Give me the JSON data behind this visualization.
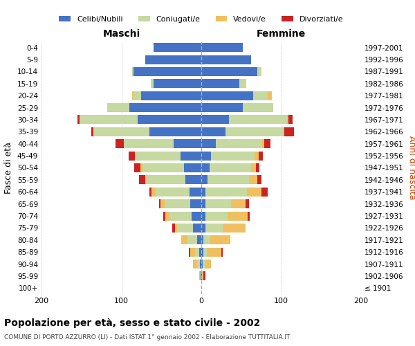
{
  "age_groups": [
    "100+",
    "95-99",
    "90-94",
    "85-89",
    "80-84",
    "75-79",
    "70-74",
    "65-69",
    "60-64",
    "55-59",
    "50-54",
    "45-49",
    "40-44",
    "35-39",
    "30-34",
    "25-29",
    "20-24",
    "15-19",
    "10-14",
    "5-9",
    "0-4"
  ],
  "birth_years": [
    "≤ 1901",
    "1902-1906",
    "1907-1911",
    "1912-1916",
    "1917-1921",
    "1922-1926",
    "1927-1931",
    "1932-1936",
    "1937-1941",
    "1942-1946",
    "1947-1951",
    "1952-1956",
    "1957-1961",
    "1962-1966",
    "1967-1971",
    "1972-1976",
    "1977-1981",
    "1982-1986",
    "1987-1991",
    "1992-1996",
    "1997-2001"
  ],
  "colors": {
    "celibi": "#4472c4",
    "coniugati": "#c5d9a0",
    "vedovi": "#f0c060",
    "divorziati": "#cc2222"
  },
  "males": {
    "celibi": [
      0,
      1,
      2,
      3,
      5,
      10,
      12,
      14,
      15,
      20,
      22,
      26,
      35,
      65,
      80,
      90,
      75,
      60,
      85,
      70,
      60
    ],
    "coniugati": [
      0,
      1,
      3,
      5,
      12,
      20,
      28,
      32,
      42,
      48,
      52,
      55,
      62,
      70,
      72,
      28,
      10,
      3,
      2,
      0,
      0
    ],
    "vedovi": [
      0,
      1,
      5,
      6,
      8,
      3,
      5,
      5,
      5,
      2,
      2,
      2,
      0,
      0,
      0,
      0,
      2,
      0,
      0,
      0,
      0
    ],
    "divorziati": [
      0,
      0,
      0,
      2,
      0,
      3,
      3,
      2,
      3,
      8,
      8,
      8,
      10,
      3,
      3,
      0,
      0,
      0,
      0,
      0,
      0
    ]
  },
  "females": {
    "celibi": [
      0,
      1,
      2,
      3,
      3,
      5,
      5,
      5,
      5,
      8,
      10,
      12,
      18,
      30,
      35,
      52,
      65,
      48,
      70,
      62,
      52
    ],
    "coniugati": [
      0,
      0,
      2,
      4,
      8,
      22,
      28,
      32,
      52,
      52,
      52,
      55,
      58,
      72,
      72,
      38,
      18,
      8,
      5,
      0,
      0
    ],
    "vedovi": [
      0,
      2,
      8,
      18,
      25,
      28,
      25,
      18,
      18,
      10,
      6,
      5,
      3,
      2,
      2,
      0,
      5,
      0,
      0,
      0,
      0
    ],
    "divorziati": [
      0,
      2,
      0,
      2,
      0,
      0,
      3,
      5,
      8,
      5,
      5,
      5,
      8,
      12,
      5,
      0,
      0,
      0,
      0,
      0,
      0
    ]
  },
  "title": "Popolazione per età, sesso e stato civile - 2002",
  "subtitle": "COMUNE DI PORTO AZZURRO (LI) - Dati ISTAT 1° gennaio 2002 - Elaborazione TUTTITALIA.IT",
  "xlabel_left": "Maschi",
  "xlabel_right": "Femmine",
  "ylabel_left": "Fasce di età",
  "ylabel_right": "Anni di nascita",
  "xlim": 200,
  "legend_labels": [
    "Celibi/Nubili",
    "Coniugati/e",
    "Vedovi/e",
    "Divorziati/e"
  ],
  "background_color": "#ffffff",
  "grid_color": "#cccccc"
}
